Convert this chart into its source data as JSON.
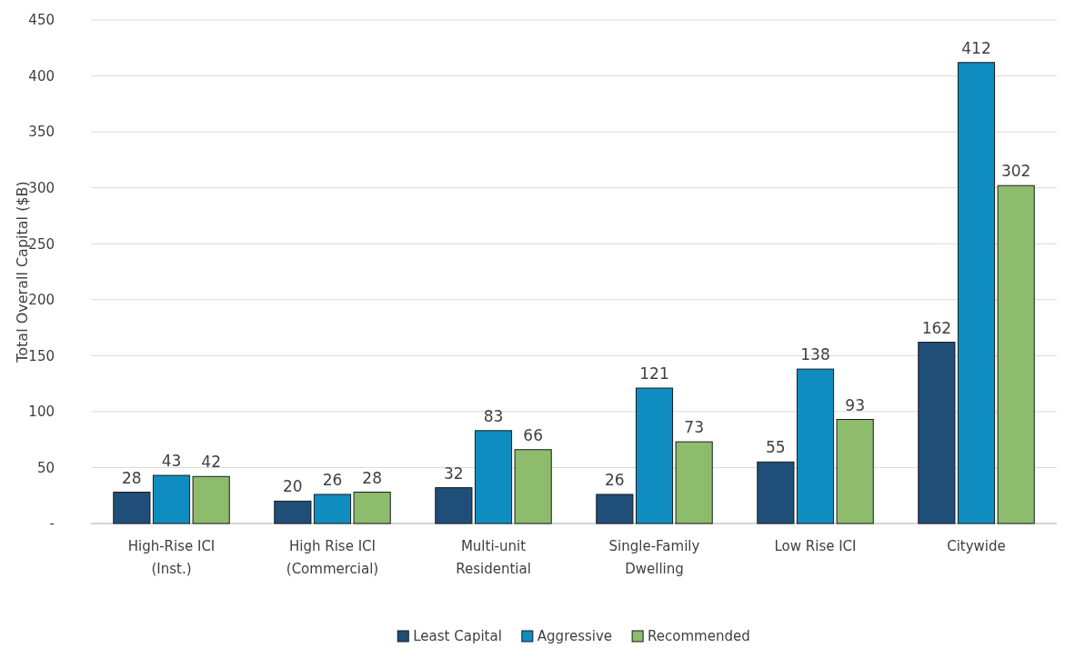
{
  "chart_data": {
    "type": "bar",
    "ylabel": "Total Overall Capital ($B)",
    "categories": [
      "High-Rise ICI (Inst.)",
      "High Rise ICI (Commercial)",
      "Multi-unit Residential",
      "Single-Family Dwelling",
      "Low Rise ICI",
      "Citywide"
    ],
    "series": [
      {
        "name": "Least Capital",
        "color": "#1f4e79",
        "values": [
          28,
          20,
          32,
          26,
          55,
          162
        ]
      },
      {
        "name": "Aggressive",
        "color": "#0f8cc0",
        "values": [
          43,
          26,
          83,
          121,
          138,
          412
        ]
      },
      {
        "name": "Recommended",
        "color": "#8cbc6c",
        "values": [
          42,
          28,
          66,
          73,
          93,
          302
        ]
      }
    ],
    "ylim": [
      0,
      450
    ],
    "yticks": [
      {
        "value": 0,
        "label": "-"
      },
      50,
      100,
      150,
      200,
      250,
      300,
      350,
      400,
      450
    ],
    "grid": "y",
    "legend": "bottom",
    "data_labels": true
  }
}
